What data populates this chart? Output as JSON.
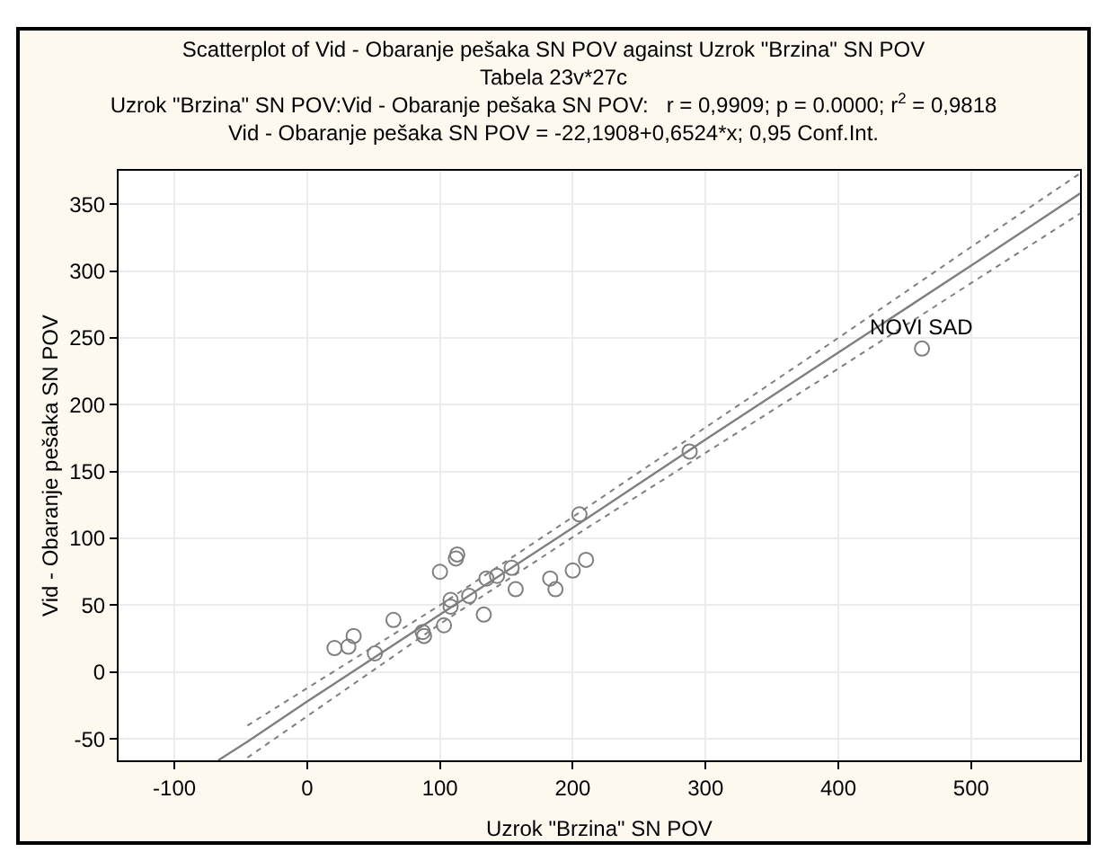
{
  "chart_data": {
    "type": "scatter",
    "title": "Scatterplot of Vid - Obaranje pešaka SN POV against Uzrok \"Brzina\" SN POV",
    "subtitle": "Tabela 23v*27c\nUzrok \"Brzina\" SN POV:Vid - Obaranje pešaka SN POV:   r = 0,9909; p = 0.0000; r$^{2}$ = 0,9818\nVid - Obaranje pešaka SN POV = -22,1908+0,6524*x; 0,95 Conf.Int.",
    "xlabel": "Uzrok \"Brzina\" SN POV",
    "ylabel": "Vid - Obaranje pešaka SN POV",
    "x": [
      20.6,
      31,
      35,
      51,
      65,
      87,
      88,
      100,
      103,
      108,
      108,
      112,
      113,
      122,
      133,
      135,
      143,
      154,
      157,
      183,
      187,
      200,
      205,
      210,
      288,
      463
    ],
    "series": [
      {
        "color": "#7f7f7f",
        "marker": "circle",
        "values": [
          18,
          19,
          27,
          14,
          39,
          30,
          27,
          75,
          35,
          54,
          49,
          85,
          88,
          57,
          43,
          70,
          72,
          78,
          62,
          70,
          62,
          76,
          118,
          84,
          165,
          242
        ]
      },
      {
        "type": "line",
        "color": "#7f7f7f",
        "line_style": "solid",
        "marker": "none",
        "x": [
          -67,
          -45,
          0,
          100,
          200,
          300,
          400,
          500,
          582
        ],
        "values": [
          -66,
          -52,
          -22,
          43,
          108,
          174,
          239,
          304,
          358
        ]
      },
      {
        "type": "line",
        "color": "#7f7f7f",
        "line_style": "dotted",
        "marker": "none",
        "x": [
          -45,
          0,
          100,
          200,
          300,
          400,
          500,
          582
        ],
        "values": [
          -64,
          -33,
          36,
          101,
          164,
          227,
          291,
          343
        ]
      },
      {
        "type": "line",
        "color": "#7f7f7f",
        "line_style": "dotted",
        "marker": "none",
        "x": [
          -45,
          0,
          100,
          200,
          300,
          400,
          500,
          582
        ],
        "values": [
          -40,
          -12,
          50,
          116,
          183,
          250,
          318,
          373
        ]
      }
    ],
    "annotations": [
      {
        "text": "NOVI SAD",
        "x": 463,
        "y": 242
      }
    ],
    "xlim": [
      -142,
      582
    ],
    "ylim": [
      -66,
      375
    ],
    "xticks": [
      -100,
      0,
      100,
      200,
      300,
      400,
      500
    ],
    "yticks": [
      -50,
      0,
      50,
      100,
      150,
      200,
      250,
      300,
      350
    ],
    "grid": true
  }
}
